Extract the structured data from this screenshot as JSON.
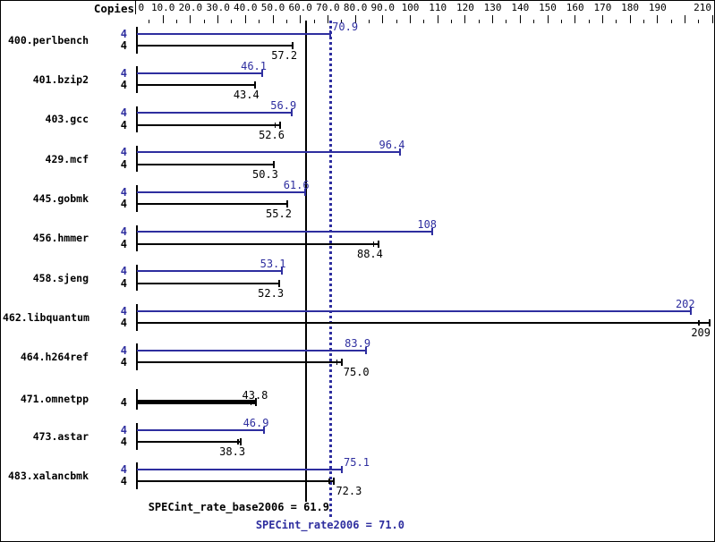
{
  "header": {
    "copies_label": "Copies"
  },
  "colors": {
    "peak_blue": "#2e2e9f",
    "base_black": "#000000",
    "background": "#ffffff",
    "border": "#000000"
  },
  "chart_data": {
    "type": "bar",
    "orientation": "horizontal",
    "x_axis": {
      "min": 0,
      "max": 210,
      "minor_tick_step": 5,
      "major_tick_step": 10,
      "tick_labels": [
        {
          "v": 0,
          "t": "0"
        },
        {
          "v": 10,
          "t": "10.0"
        },
        {
          "v": 20,
          "t": "20.0"
        },
        {
          "v": 30,
          "t": "30.0"
        },
        {
          "v": 40,
          "t": "40.0"
        },
        {
          "v": 50,
          "t": "50.0"
        },
        {
          "v": 60,
          "t": "60.0"
        },
        {
          "v": 70,
          "t": "70.0"
        },
        {
          "v": 80,
          "t": "80.0"
        },
        {
          "v": 90,
          "t": "90.0"
        },
        {
          "v": 100,
          "t": "100"
        },
        {
          "v": 110,
          "t": "110"
        },
        {
          "v": 120,
          "t": "120"
        },
        {
          "v": 130,
          "t": "130"
        },
        {
          "v": 140,
          "t": "140"
        },
        {
          "v": 150,
          "t": "150"
        },
        {
          "v": 160,
          "t": "160"
        },
        {
          "v": 170,
          "t": "170"
        },
        {
          "v": 180,
          "t": "180"
        },
        {
          "v": 190,
          "t": "190"
        },
        {
          "v": 210,
          "t": "210"
        }
      ]
    },
    "benchmarks": [
      {
        "name": "400.perlbench",
        "copies": "4",
        "peak": 70.9,
        "peak_label": "70.9",
        "base": 57.2,
        "base_label": "57.2"
      },
      {
        "name": "401.bzip2",
        "copies": "4",
        "peak": 46.1,
        "peak_label": "46.1",
        "base": 43.4,
        "base_label": "43.4"
      },
      {
        "name": "403.gcc",
        "copies": "4",
        "peak": 56.9,
        "peak_label": "56.9",
        "base": 52.6,
        "base_label": "52.6",
        "base_marker_px": 5
      },
      {
        "name": "429.mcf",
        "copies": "4",
        "peak": 96.4,
        "peak_label": "96.4",
        "base": 50.3,
        "base_label": "50.3"
      },
      {
        "name": "445.gobmk",
        "copies": "4",
        "peak": 61.6,
        "peak_label": "61.6",
        "base": 55.2,
        "base_label": "55.2"
      },
      {
        "name": "456.hmmer",
        "copies": "4",
        "peak": 108,
        "peak_label": "108",
        "base": 88.4,
        "base_label": "88.4",
        "base_marker_px": 5
      },
      {
        "name": "458.sjeng",
        "copies": "4",
        "peak": 53.1,
        "peak_label": "53.1",
        "base": 52.3,
        "base_label": "52.3"
      },
      {
        "name": "462.libquantum",
        "copies": "4",
        "peak": 202,
        "peak_label": "202",
        "base": 209,
        "base_label": "209",
        "base_marker_px": 12
      },
      {
        "name": "464.h264ref",
        "copies": "4",
        "peak": 83.9,
        "peak_label": "83.9",
        "base": 75.0,
        "base_label": "75.0",
        "base_marker_px": 5
      },
      {
        "name": "471.omnetpp",
        "copies": "4",
        "single_bar": true,
        "peak": 43.8,
        "base": 43.8,
        "value_label": "43.8",
        "base_marker_px": 5
      },
      {
        "name": "473.astar",
        "copies": "4",
        "peak": 46.9,
        "peak_label": "46.9",
        "base": 38.3,
        "base_label": "38.3",
        "base_marker_px": 3
      },
      {
        "name": "483.xalancbmk",
        "copies": "4",
        "peak": 75.1,
        "peak_label": "75.1",
        "base": 72.3,
        "base_label": "72.3",
        "base_marker_px": 5
      }
    ],
    "means": {
      "base_value": 61.9,
      "base_text": "SPECint_rate_base2006 = 61.9",
      "peak_value": 71.0,
      "peak_text": "SPECint_rate2006 = 71.0"
    }
  }
}
